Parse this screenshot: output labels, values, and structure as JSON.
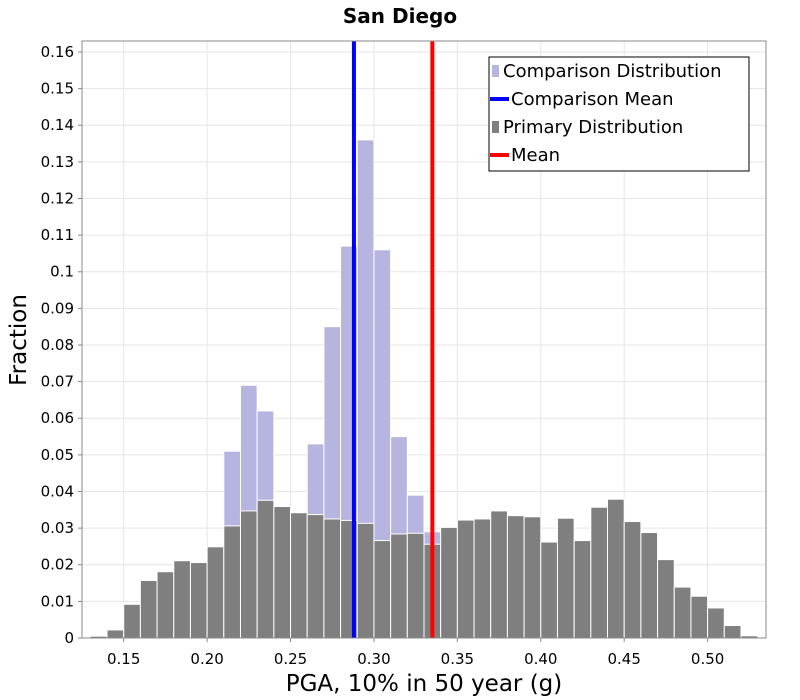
{
  "chart_data": {
    "type": "bar",
    "title": "San Diego",
    "xlabel": "PGA, 10% in 50 year (g)",
    "ylabel": "Fraction",
    "xlim": [
      0.125,
      0.535
    ],
    "ylim": [
      0,
      0.163
    ],
    "bin_width": 0.01,
    "x_ticks": [
      0.15,
      0.2,
      0.25,
      0.3,
      0.35,
      0.4,
      0.45,
      0.5
    ],
    "x_tick_labels": [
      "0.15",
      "0.20",
      "0.25",
      "0.30",
      "0.35",
      "0.40",
      "0.45",
      "0.50"
    ],
    "y_ticks": [
      0,
      0.01,
      0.02,
      0.03,
      0.04,
      0.05,
      0.06,
      0.07,
      0.08,
      0.09,
      0.1,
      0.11,
      0.12,
      0.13,
      0.14,
      0.15,
      0.16
    ],
    "y_tick_labels": [
      "0",
      "0.01",
      "0.02",
      "0.03",
      "0.04",
      "0.05",
      "0.06",
      "0.07",
      "0.08",
      "0.09",
      "0.1",
      "0.11",
      "0.12",
      "0.13",
      "0.14",
      "0.15",
      "0.16"
    ],
    "grid": true,
    "legend_position": "top-right",
    "legend": [
      {
        "label": "Comparison Distribution",
        "type": "bar",
        "color": "#b5b5e0"
      },
      {
        "label": "Comparison Mean",
        "type": "line",
        "color": "#0000ff"
      },
      {
        "label": "Primary Distribution",
        "type": "bar",
        "color": "#7f7f7f"
      },
      {
        "label": "Mean",
        "type": "line",
        "color": "#ff0000"
      }
    ],
    "series": [
      {
        "name": "Comparison Distribution",
        "color": "#b5b5e0",
        "x": [
          0.215,
          0.225,
          0.235,
          0.265,
          0.275,
          0.285,
          0.295,
          0.305,
          0.315,
          0.325,
          0.335
        ],
        "values": [
          0.051,
          0.069,
          0.062,
          0.053,
          0.085,
          0.107,
          0.136,
          0.106,
          0.055,
          0.039,
          0.029
        ]
      },
      {
        "name": "Primary Distribution",
        "color": "#7f7f7f",
        "x": [
          0.135,
          0.145,
          0.155,
          0.165,
          0.175,
          0.185,
          0.195,
          0.205,
          0.215,
          0.225,
          0.235,
          0.245,
          0.255,
          0.265,
          0.275,
          0.285,
          0.295,
          0.305,
          0.315,
          0.325,
          0.335,
          0.345,
          0.355,
          0.365,
          0.375,
          0.385,
          0.395,
          0.405,
          0.415,
          0.425,
          0.435,
          0.445,
          0.455,
          0.465,
          0.475,
          0.485,
          0.495,
          0.505,
          0.515,
          0.525
        ],
        "values": [
          0.0005,
          0.0022,
          0.0092,
          0.0157,
          0.0181,
          0.0211,
          0.0206,
          0.0249,
          0.0306,
          0.0347,
          0.0376,
          0.0359,
          0.0342,
          0.0337,
          0.0325,
          0.0321,
          0.0313,
          0.0266,
          0.0284,
          0.0286,
          0.0256,
          0.0302,
          0.0322,
          0.0325,
          0.0347,
          0.0334,
          0.0331,
          0.0262,
          0.0327,
          0.0266,
          0.0357,
          0.0379,
          0.0318,
          0.0288,
          0.0214,
          0.0139,
          0.0114,
          0.0082,
          0.0034,
          0.0006
        ]
      }
    ],
    "mean_lines": [
      {
        "name": "Comparison Mean",
        "x": 0.288,
        "color": "#0000ff"
      },
      {
        "name": "Mean",
        "x": 0.335,
        "color": "#ff0000"
      }
    ]
  }
}
